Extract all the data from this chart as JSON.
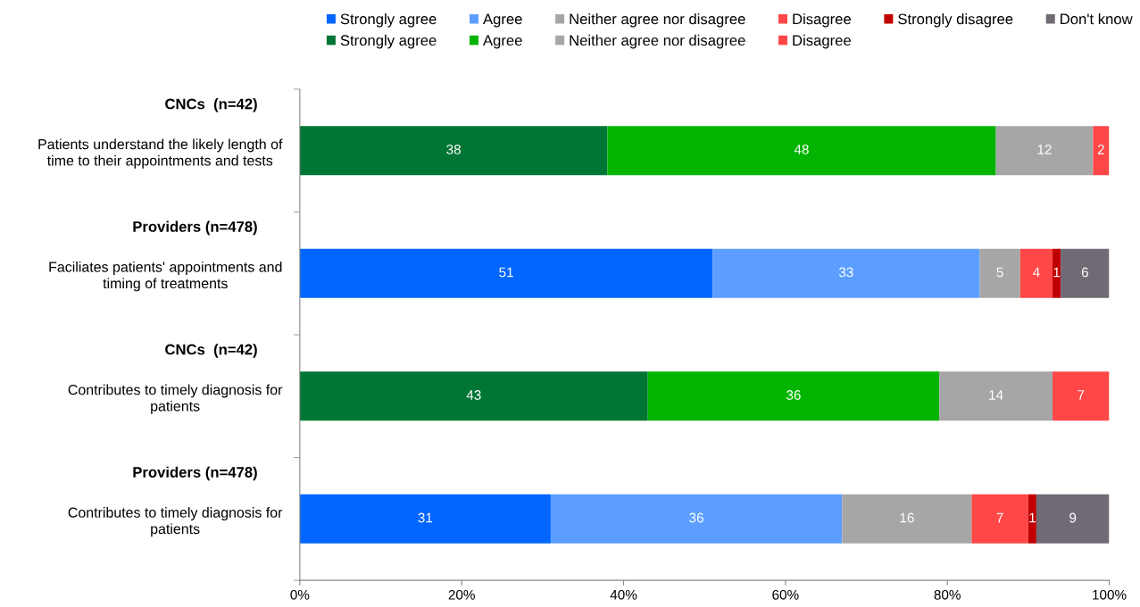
{
  "chart_data": {
    "type": "bar",
    "orientation": "horizontal",
    "stacked": true,
    "data_labels": true,
    "grid": false,
    "legend": "top",
    "categories": [
      "Patients understand the likely length of\ntime to their appointments and tests",
      "Faciliates patients' appointments and\ntiming of treatments",
      "Contributes to timely diagnosis for\npatients",
      "Contributes to timely diagnosis for\npatients"
    ],
    "annotations": [
      "CNCs  (n=42)",
      "Providers (n=478)",
      "CNCs  (n=42)",
      "Providers (n=478)"
    ],
    "xlim": [
      0,
      100
    ],
    "xticks": [
      {
        "value": 0,
        "label": "0%"
      },
      {
        "value": 20,
        "label": "20%"
      },
      {
        "value": 40,
        "label": "40%"
      },
      {
        "value": 60,
        "label": "60%"
      },
      {
        "value": 80,
        "label": "80%"
      },
      {
        "value": 100,
        "label": "100%"
      }
    ],
    "series": [
      {
        "name": "Strongly agree",
        "color": "#0066ff",
        "values": [
          null,
          51,
          null,
          31
        ]
      },
      {
        "name": "Agree",
        "color": "#5b9eff",
        "values": [
          null,
          33,
          null,
          36
        ]
      },
      {
        "name": "Neither agree nor disagree",
        "color": "#a6a6a6",
        "values": [
          null,
          5,
          null,
          16
        ]
      },
      {
        "name": "Disagree",
        "color": "#ff4747",
        "values": [
          null,
          4,
          null,
          7
        ]
      },
      {
        "name": "Strongly disagree",
        "color": "#c00000",
        "values": [
          null,
          1,
          null,
          1
        ]
      },
      {
        "name": "Don't know",
        "color": "#706a75",
        "values": [
          null,
          6,
          null,
          9
        ]
      },
      {
        "name": "Strongly agree",
        "color": "#007635",
        "values": [
          38,
          null,
          43,
          null
        ]
      },
      {
        "name": "Agree",
        "color": "#00b400",
        "values": [
          48,
          null,
          36,
          null
        ]
      },
      {
        "name": "Neither agree nor disagree",
        "color": "#a6a6a6",
        "values": [
          12,
          null,
          14,
          null
        ]
      },
      {
        "name": "Disagree",
        "color": "#ff4747",
        "values": [
          2,
          null,
          7,
          null
        ]
      }
    ]
  }
}
